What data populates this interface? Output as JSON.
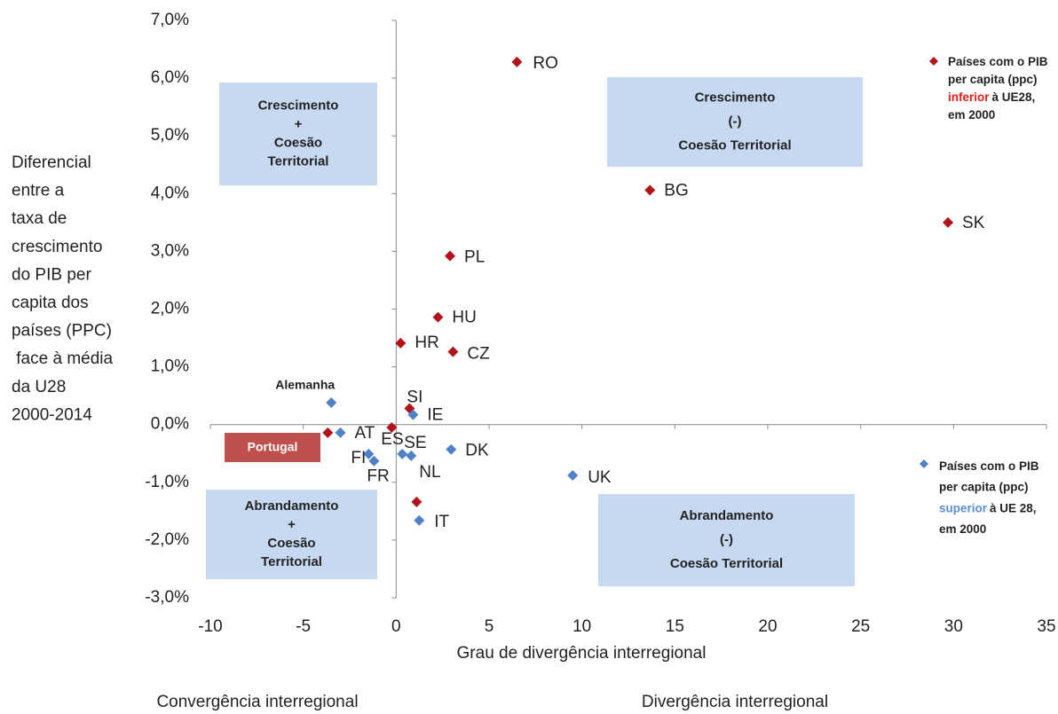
{
  "chart_data": {
    "type": "scatter",
    "xlabel": "Grau de divergência interregional",
    "ylabel_lines": [
      "Diferencial",
      "entre a",
      "taxa de",
      "crescimento",
      "do PIB per",
      "capita dos",
      "países (PPC)",
      " face à média",
      "da U28",
      "2000-2014"
    ],
    "footer_left": "Convergência interregional",
    "footer_right": "Divergência interregional",
    "xlim": [
      -10,
      35
    ],
    "xticks": [
      -10,
      -5,
      0,
      5,
      10,
      15,
      20,
      25,
      30,
      35
    ],
    "ylim": [
      -3,
      7
    ],
    "yticks": [
      {
        "value": -3,
        "label": "-3,0%"
      },
      {
        "value": -2,
        "label": "-2,0%"
      },
      {
        "value": -1,
        "label": "-1,0%"
      },
      {
        "value": 0,
        "label": "0,0%"
      },
      {
        "value": 1,
        "label": "1,0%"
      },
      {
        "value": 2,
        "label": "2,0%"
      },
      {
        "value": 3,
        "label": "3,0%"
      },
      {
        "value": 4,
        "label": "4,0%"
      },
      {
        "value": 5,
        "label": "5,0%"
      },
      {
        "value": 6,
        "label": "6,0%"
      },
      {
        "value": 7,
        "label": "7,0%"
      }
    ],
    "grid": false,
    "series": [
      {
        "name": "Países com o PIB per capita (ppc) inferior à UE28, em 2000",
        "legend_lines": [
          [
            "Países com o PIB"
          ],
          [
            "per capita (ppc)"
          ],
          [
            "inferior",
            "à  UE28,"
          ],
          [
            "em 2000"
          ]
        ],
        "highlight_color": "#e0201b",
        "color": "#b3121a",
        "labels": [
          "RO",
          "BG",
          "SK",
          "PL",
          "HU",
          "HR",
          "CZ",
          "SI",
          null,
          "ES",
          null
        ],
        "x": [
          6.5,
          13.66,
          29.7,
          2.9,
          2.25,
          0.24,
          3.06,
          0.72,
          -3.68,
          -0.24,
          1.1
        ],
        "values": [
          6.28,
          4.06,
          3.5,
          2.92,
          1.86,
          1.41,
          1.26,
          0.28,
          -0.14,
          -0.05,
          -1.34
        ]
      },
      {
        "name": "Países com o PIB per capita (ppc) superior à UE 28, em 2000",
        "legend_lines": [
          [
            "Países com o PIB"
          ],
          [
            "per capita (ppc)"
          ],
          [
            "superior",
            "à  UE 28,"
          ],
          [
            "em 2000"
          ]
        ],
        "highlight_color": "#5b8fd1",
        "color": "#4f81c6",
        "labels": [
          "Alemanha",
          "AT",
          "FI",
          "FR",
          "SE",
          "NL",
          "IE",
          "DK",
          "UK",
          "IT"
        ],
        "x": [
          -3.49,
          -3.0,
          -1.48,
          -1.19,
          0.33,
          0.81,
          0.91,
          2.96,
          9.5,
          1.24
        ],
        "values": [
          0.38,
          -0.14,
          -0.51,
          -0.63,
          -0.51,
          -0.54,
          0.17,
          -0.43,
          -0.88,
          -1.66
        ]
      }
    ],
    "annotations": [
      {
        "label": "Portugal"
      },
      {
        "lines": [
          "Crescimento",
          "+",
          "Coesão",
          "Territorial"
        ]
      },
      {
        "lines": [
          "Crescimento",
          "(-)",
          "Coesão Territorial"
        ]
      },
      {
        "lines": [
          "Abrandamento",
          "+",
          "Coesão",
          "Territorial"
        ]
      },
      {
        "lines": [
          "Abrandamento",
          "(-)",
          "Coesão Territorial"
        ]
      }
    ]
  }
}
